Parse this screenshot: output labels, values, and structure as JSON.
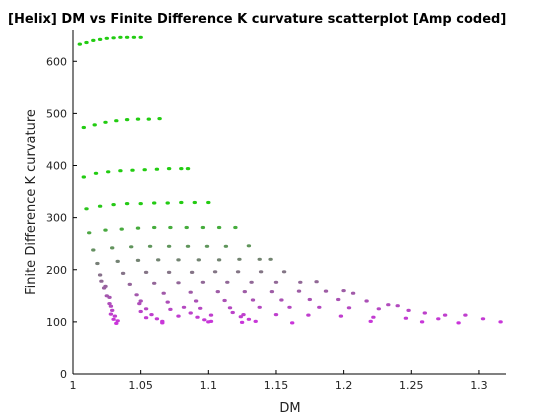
{
  "chart_data": {
    "type": "scatter",
    "title": "[Helix] DM vs Finite Difference K curvature scatterplot [Amp coded]",
    "xlabel": "DM",
    "ylabel": "Finite Difference K curvature",
    "xlim": [
      1,
      1.32
    ],
    "ylim": [
      0,
      660
    ],
    "xticks": [
      "1",
      "1.05",
      "1.1",
      "1.15",
      "1.2",
      "1.25",
      "1.3"
    ],
    "yticks": [
      "0",
      "100",
      "200",
      "300",
      "400",
      "500",
      "600"
    ],
    "grid": false,
    "color_scale": {
      "low": "#cc33dd",
      "high": "#22cc11"
    },
    "points": [
      [
        1.005,
        633
      ],
      [
        1.01,
        636
      ],
      [
        1.015,
        640
      ],
      [
        1.02,
        642
      ],
      [
        1.025,
        644
      ],
      [
        1.03,
        645
      ],
      [
        1.035,
        646
      ],
      [
        1.04,
        646
      ],
      [
        1.045,
        646
      ],
      [
        1.05,
        646
      ],
      [
        1.008,
        473
      ],
      [
        1.016,
        478
      ],
      [
        1.024,
        483
      ],
      [
        1.032,
        486
      ],
      [
        1.04,
        488
      ],
      [
        1.048,
        489
      ],
      [
        1.056,
        489
      ],
      [
        1.064,
        490
      ],
      [
        1.008,
        378
      ],
      [
        1.017,
        385
      ],
      [
        1.026,
        388
      ],
      [
        1.035,
        390
      ],
      [
        1.044,
        391
      ],
      [
        1.053,
        392
      ],
      [
        1.062,
        393
      ],
      [
        1.071,
        394
      ],
      [
        1.08,
        394
      ],
      [
        1.085,
        394
      ],
      [
        1.01,
        317
      ],
      [
        1.02,
        322
      ],
      [
        1.03,
        325
      ],
      [
        1.04,
        327
      ],
      [
        1.05,
        327
      ],
      [
        1.06,
        328
      ],
      [
        1.07,
        328
      ],
      [
        1.08,
        329
      ],
      [
        1.09,
        329
      ],
      [
        1.1,
        329
      ],
      [
        1.012,
        271
      ],
      [
        1.024,
        276
      ],
      [
        1.036,
        278
      ],
      [
        1.048,
        280
      ],
      [
        1.06,
        281
      ],
      [
        1.072,
        281
      ],
      [
        1.084,
        281
      ],
      [
        1.096,
        281
      ],
      [
        1.108,
        281
      ],
      [
        1.12,
        281
      ],
      [
        1.015,
        238
      ],
      [
        1.029,
        242
      ],
      [
        1.043,
        244
      ],
      [
        1.057,
        245
      ],
      [
        1.071,
        245
      ],
      [
        1.085,
        245
      ],
      [
        1.099,
        245
      ],
      [
        1.113,
        245
      ],
      [
        1.13,
        246
      ],
      [
        1.018,
        212
      ],
      [
        1.033,
        216
      ],
      [
        1.048,
        218
      ],
      [
        1.063,
        219
      ],
      [
        1.078,
        219
      ],
      [
        1.093,
        219
      ],
      [
        1.108,
        219
      ],
      [
        1.123,
        220
      ],
      [
        1.138,
        220
      ],
      [
        1.146,
        220
      ],
      [
        1.02,
        190
      ],
      [
        1.037,
        193
      ],
      [
        1.054,
        195
      ],
      [
        1.071,
        195
      ],
      [
        1.088,
        195
      ],
      [
        1.105,
        196
      ],
      [
        1.122,
        196
      ],
      [
        1.139,
        196
      ],
      [
        1.156,
        196
      ],
      [
        1.024,
        168
      ],
      [
        1.042,
        172
      ],
      [
        1.06,
        174
      ],
      [
        1.078,
        175
      ],
      [
        1.096,
        176
      ],
      [
        1.114,
        176
      ],
      [
        1.132,
        176
      ],
      [
        1.15,
        176
      ],
      [
        1.168,
        176
      ],
      [
        1.18,
        177
      ],
      [
        1.027,
        147
      ],
      [
        1.047,
        152
      ],
      [
        1.067,
        155
      ],
      [
        1.087,
        157
      ],
      [
        1.107,
        158
      ],
      [
        1.127,
        158
      ],
      [
        1.147,
        158
      ],
      [
        1.167,
        159
      ],
      [
        1.187,
        159
      ],
      [
        1.2,
        160
      ],
      [
        1.207,
        155
      ],
      [
        1.028,
        130
      ],
      [
        1.049,
        135
      ],
      [
        1.07,
        138
      ],
      [
        1.091,
        140
      ],
      [
        1.112,
        141
      ],
      [
        1.133,
        142
      ],
      [
        1.154,
        142
      ],
      [
        1.175,
        143
      ],
      [
        1.196,
        143
      ],
      [
        1.217,
        140
      ],
      [
        1.233,
        133
      ],
      [
        1.24,
        131
      ],
      [
        1.028,
        115
      ],
      [
        1.05,
        120
      ],
      [
        1.072,
        124
      ],
      [
        1.094,
        126
      ],
      [
        1.116,
        127
      ],
      [
        1.138,
        128
      ],
      [
        1.16,
        128
      ],
      [
        1.182,
        128
      ],
      [
        1.204,
        127
      ],
      [
        1.226,
        125
      ],
      [
        1.248,
        122
      ],
      [
        1.26,
        117
      ],
      [
        1.275,
        113
      ],
      [
        1.03,
        105
      ],
      [
        1.054,
        108
      ],
      [
        1.078,
        111
      ],
      [
        1.102,
        113
      ],
      [
        1.126,
        114
      ],
      [
        1.15,
        114
      ],
      [
        1.174,
        113
      ],
      [
        1.198,
        111
      ],
      [
        1.222,
        109
      ],
      [
        1.246,
        107
      ],
      [
        1.27,
        106
      ],
      [
        1.29,
        113
      ],
      [
        1.303,
        106
      ],
      [
        1.316,
        100
      ],
      [
        1.032,
        97
      ],
      [
        1.066,
        98
      ],
      [
        1.1,
        100
      ],
      [
        1.125,
        99
      ],
      [
        1.162,
        98
      ],
      [
        1.22,
        101
      ],
      [
        1.258,
        100
      ],
      [
        1.285,
        98
      ],
      [
        1.021,
        178
      ],
      [
        1.023,
        165
      ],
      [
        1.025,
        150
      ],
      [
        1.027,
        135
      ],
      [
        1.029,
        122
      ],
      [
        1.031,
        111
      ],
      [
        1.033,
        102
      ],
      [
        1.05,
        140
      ],
      [
        1.054,
        125
      ],
      [
        1.058,
        114
      ],
      [
        1.062,
        106
      ],
      [
        1.066,
        101
      ],
      [
        1.082,
        128
      ],
      [
        1.087,
        117
      ],
      [
        1.092,
        109
      ],
      [
        1.097,
        104
      ],
      [
        1.102,
        101
      ],
      [
        1.118,
        118
      ],
      [
        1.124,
        110
      ],
      [
        1.13,
        105
      ],
      [
        1.135,
        101
      ]
    ]
  }
}
